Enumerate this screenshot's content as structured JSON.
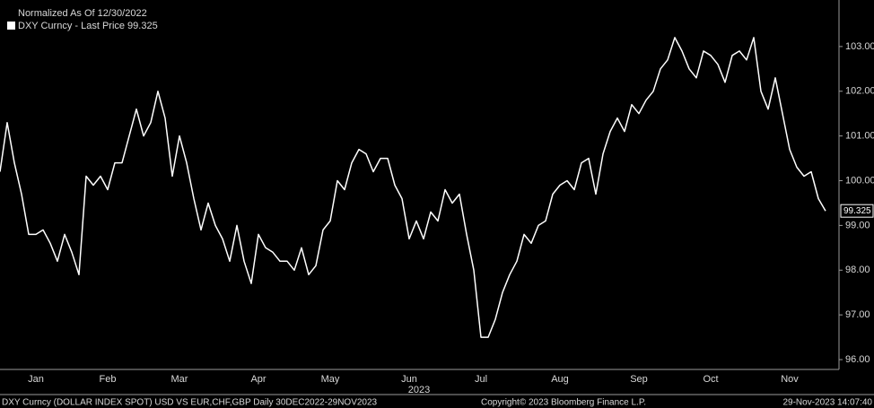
{
  "chart_data": {
    "type": "line",
    "header": "Normalized As Of 12/30/2022",
    "footer_left": "DXY Curncy (DOLLAR INDEX SPOT) USD VS EUR,CHF,GBP  Daily 30DEC2022-29NOV2023",
    "footer_center": "Copyright© 2023 Bloomberg Finance L.P.",
    "footer_right": "29-Nov-2023 14:07:40",
    "x_axis_year": "2023",
    "categories": [
      null,
      null,
      null,
      null,
      null,
      "Jan",
      null,
      null,
      null,
      null,
      null,
      null,
      null,
      null,
      null,
      "Feb",
      null,
      null,
      null,
      null,
      null,
      null,
      null,
      null,
      null,
      "Mar",
      null,
      null,
      null,
      null,
      null,
      null,
      null,
      null,
      null,
      null,
      "Apr",
      null,
      null,
      null,
      null,
      null,
      null,
      null,
      null,
      null,
      "May",
      null,
      null,
      null,
      null,
      null,
      null,
      null,
      null,
      null,
      null,
      "Jun",
      null,
      null,
      null,
      null,
      null,
      null,
      null,
      null,
      null,
      "Jul",
      null,
      null,
      null,
      null,
      null,
      null,
      null,
      null,
      null,
      null,
      "Aug",
      null,
      null,
      null,
      null,
      null,
      null,
      null,
      null,
      null,
      null,
      "Sep",
      null,
      null,
      null,
      null,
      null,
      null,
      null,
      null,
      null,
      "Oct",
      null,
      null,
      null,
      null,
      null,
      null,
      null,
      null,
      null,
      null,
      "Nov",
      null,
      null,
      null,
      null,
      null
    ],
    "series": [
      {
        "name": "DXY Curncy - Last Price 99.325",
        "color": "#ffffff",
        "values": [
          100.2,
          101.3,
          100.4,
          99.7,
          98.8,
          98.8,
          98.9,
          98.6,
          98.2,
          98.8,
          98.4,
          97.9,
          100.1,
          99.9,
          100.1,
          99.8,
          100.4,
          100.4,
          101.0,
          101.6,
          101.0,
          101.3,
          102.0,
          101.4,
          100.1,
          101.0,
          100.4,
          99.6,
          98.9,
          99.5,
          99.0,
          98.7,
          98.2,
          99.0,
          98.2,
          97.7,
          98.8,
          98.5,
          98.4,
          98.2,
          98.2,
          98.0,
          98.5,
          97.9,
          98.1,
          98.9,
          99.1,
          100.0,
          99.8,
          100.4,
          100.7,
          100.6,
          100.2,
          100.5,
          100.5,
          99.9,
          99.6,
          98.7,
          99.1,
          98.7,
          99.3,
          99.1,
          99.8,
          99.5,
          99.7,
          98.8,
          98.0,
          96.5,
          96.5,
          96.9,
          97.5,
          97.9,
          98.2,
          98.8,
          98.6,
          99.0,
          99.1,
          99.7,
          99.9,
          100.0,
          99.8,
          100.4,
          100.5,
          99.7,
          100.6,
          101.1,
          101.4,
          101.1,
          101.7,
          101.5,
          101.8,
          102.0,
          102.5,
          102.7,
          103.2,
          102.9,
          102.5,
          102.3,
          102.9,
          102.8,
          102.6,
          102.2,
          102.8,
          102.9,
          102.7,
          103.2,
          102.0,
          101.6,
          102.3,
          101.5,
          100.7,
          100.3,
          100.1,
          100.2,
          99.6,
          99.325
        ]
      }
    ],
    "ylim": [
      95.78,
      104.04
    ],
    "yticks": [
      {
        "value": 96,
        "label": "96.00"
      },
      {
        "value": 97,
        "label": "97.00"
      },
      {
        "value": 98,
        "label": "98.00"
      },
      {
        "value": 99,
        "label": "99.00"
      },
      {
        "value": 100,
        "label": "100.00"
      },
      {
        "value": 101,
        "label": "101.00"
      },
      {
        "value": 102,
        "label": "102.00"
      },
      {
        "value": 103,
        "label": "103.00"
      }
    ],
    "axis_side": "right",
    "grid": false
  }
}
